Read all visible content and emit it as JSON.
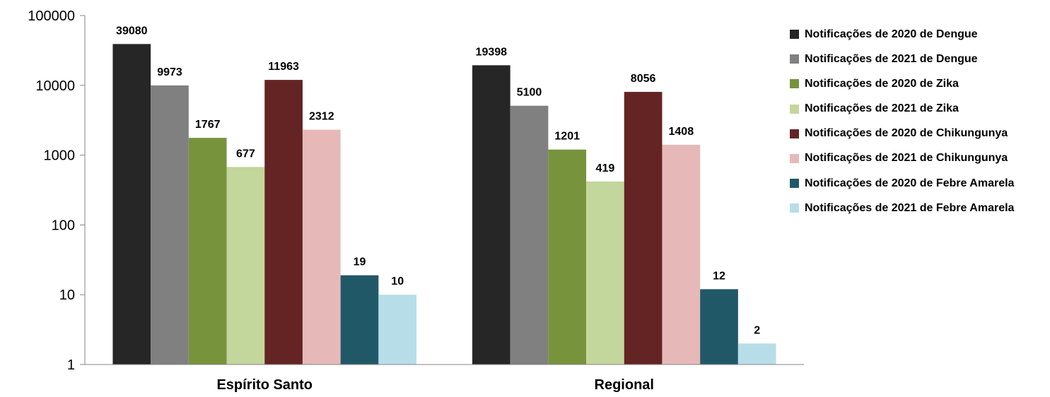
{
  "chart_data": {
    "type": "bar",
    "scale": "log",
    "ylim": [
      1,
      100000
    ],
    "yticks": [
      "1",
      "10",
      "100",
      "1000",
      "10000",
      "100000"
    ],
    "grid": false,
    "legend_position": "right",
    "categories": [
      "Espírito Santo",
      "Regional"
    ],
    "series": [
      {
        "name": "Notificações de 2020 de Dengue",
        "color": "#262626",
        "values": [
          39080,
          19398
        ],
        "labels": [
          "39080",
          "19398"
        ]
      },
      {
        "name": "Notificações de 2021 de Dengue",
        "color": "#808080",
        "values": [
          9973,
          5100
        ],
        "labels": [
          "9973",
          "5100"
        ]
      },
      {
        "name": "Notificações de 2020 de Zika",
        "color": "#77933c",
        "values": [
          1767,
          1201
        ],
        "labels": [
          "1767",
          "1201"
        ]
      },
      {
        "name": "Notificações de 2021 de Zika",
        "color": "#c3d69b",
        "values": [
          677,
          419
        ],
        "labels": [
          "677",
          "419"
        ]
      },
      {
        "name": "Notificações de 2020 de Chikungunya",
        "color": "#632423",
        "values": [
          11963,
          8056
        ],
        "labels": [
          "11963",
          "8056"
        ]
      },
      {
        "name": "Notificações de 2021 de Chikungunya",
        "color": "#e6b9b8",
        "values": [
          2312,
          1408
        ],
        "labels": [
          "2312",
          "1408"
        ]
      },
      {
        "name": "Notificações de 2020 de Febre Amarela",
        "color": "#215868",
        "values": [
          19,
          12
        ],
        "labels": [
          "19",
          "12"
        ]
      },
      {
        "name": "Notificações de 2021 de Febre Amarela",
        "color": "#b7dee8",
        "values": [
          10,
          2
        ],
        "labels": [
          "10",
          "2"
        ]
      }
    ]
  }
}
